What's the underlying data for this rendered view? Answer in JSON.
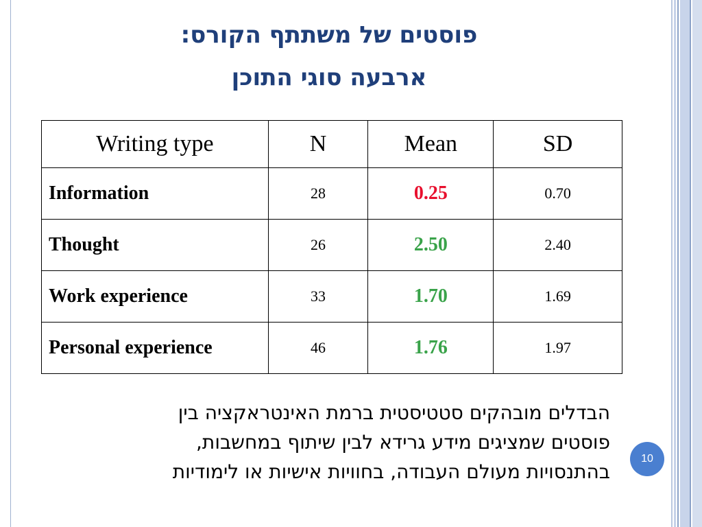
{
  "title": {
    "line1": "פוסטים של משתתף הקורס:",
    "line2": "ארבעה סוגי התוכן"
  },
  "table": {
    "headers": [
      "Writing type",
      "N",
      "Mean",
      "SD"
    ],
    "rows": [
      {
        "type": "Information",
        "n": "28",
        "mean": "0.25",
        "sd": "0.70",
        "mean_color": "#e8102e"
      },
      {
        "type": "Thought",
        "n": "26",
        "mean": "2.50",
        "sd": "2.40",
        "mean_color": "#3aa34a"
      },
      {
        "type": "Work experience",
        "n": "33",
        "mean": "1.70",
        "sd": "1.69",
        "mean_color": "#3aa34a"
      },
      {
        "type": "Personal experience",
        "n": "46",
        "mean": "1.76",
        "sd": "1.97",
        "mean_color": "#3aa34a"
      }
    ]
  },
  "body": {
    "lines": [
      "הבדלים מובהקים סטטיסטית ברמת האינטראקציה בין",
      "פוסטים שמציגים מידע גרידא לבין שיתוף במחשבות,",
      "בהתנסויות מעולם העבודה, בחוויות אישיות או לימודיות"
    ]
  },
  "page_number": "10",
  "colors": {
    "title": "#1f3f7a",
    "badge": "#4a7fd0",
    "mean_low": "#e8102e",
    "mean_high": "#3aa34a"
  }
}
